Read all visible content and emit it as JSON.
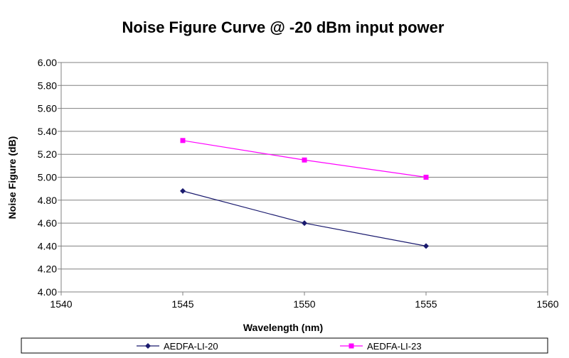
{
  "chart_data": {
    "type": "line",
    "title": "Noise Figure Curve @ -20 dBm input power",
    "xlabel": "Wavelength (nm)",
    "ylabel": "Noise Figure (dB)",
    "xlim": [
      1540,
      1560
    ],
    "ylim": [
      4.0,
      6.0
    ],
    "x_ticks": [
      "1540",
      "1545",
      "1550",
      "1555",
      "1560"
    ],
    "y_ticks": [
      "4.00",
      "4.20",
      "4.40",
      "4.60",
      "4.80",
      "5.00",
      "5.20",
      "5.40",
      "5.60",
      "5.80",
      "6.00"
    ],
    "grid": "horizontal",
    "legend_position": "bottom",
    "series": [
      {
        "name": "AEDFA-LI-20",
        "color": "#1a1a6e",
        "marker": "diamond",
        "x": [
          1545,
          1550,
          1555
        ],
        "y": [
          4.88,
          4.6,
          4.4
        ]
      },
      {
        "name": "AEDFA-LI-23",
        "color": "#ff00ff",
        "marker": "square",
        "x": [
          1545,
          1550,
          1555
        ],
        "y": [
          5.32,
          5.15,
          5.0
        ]
      }
    ]
  }
}
